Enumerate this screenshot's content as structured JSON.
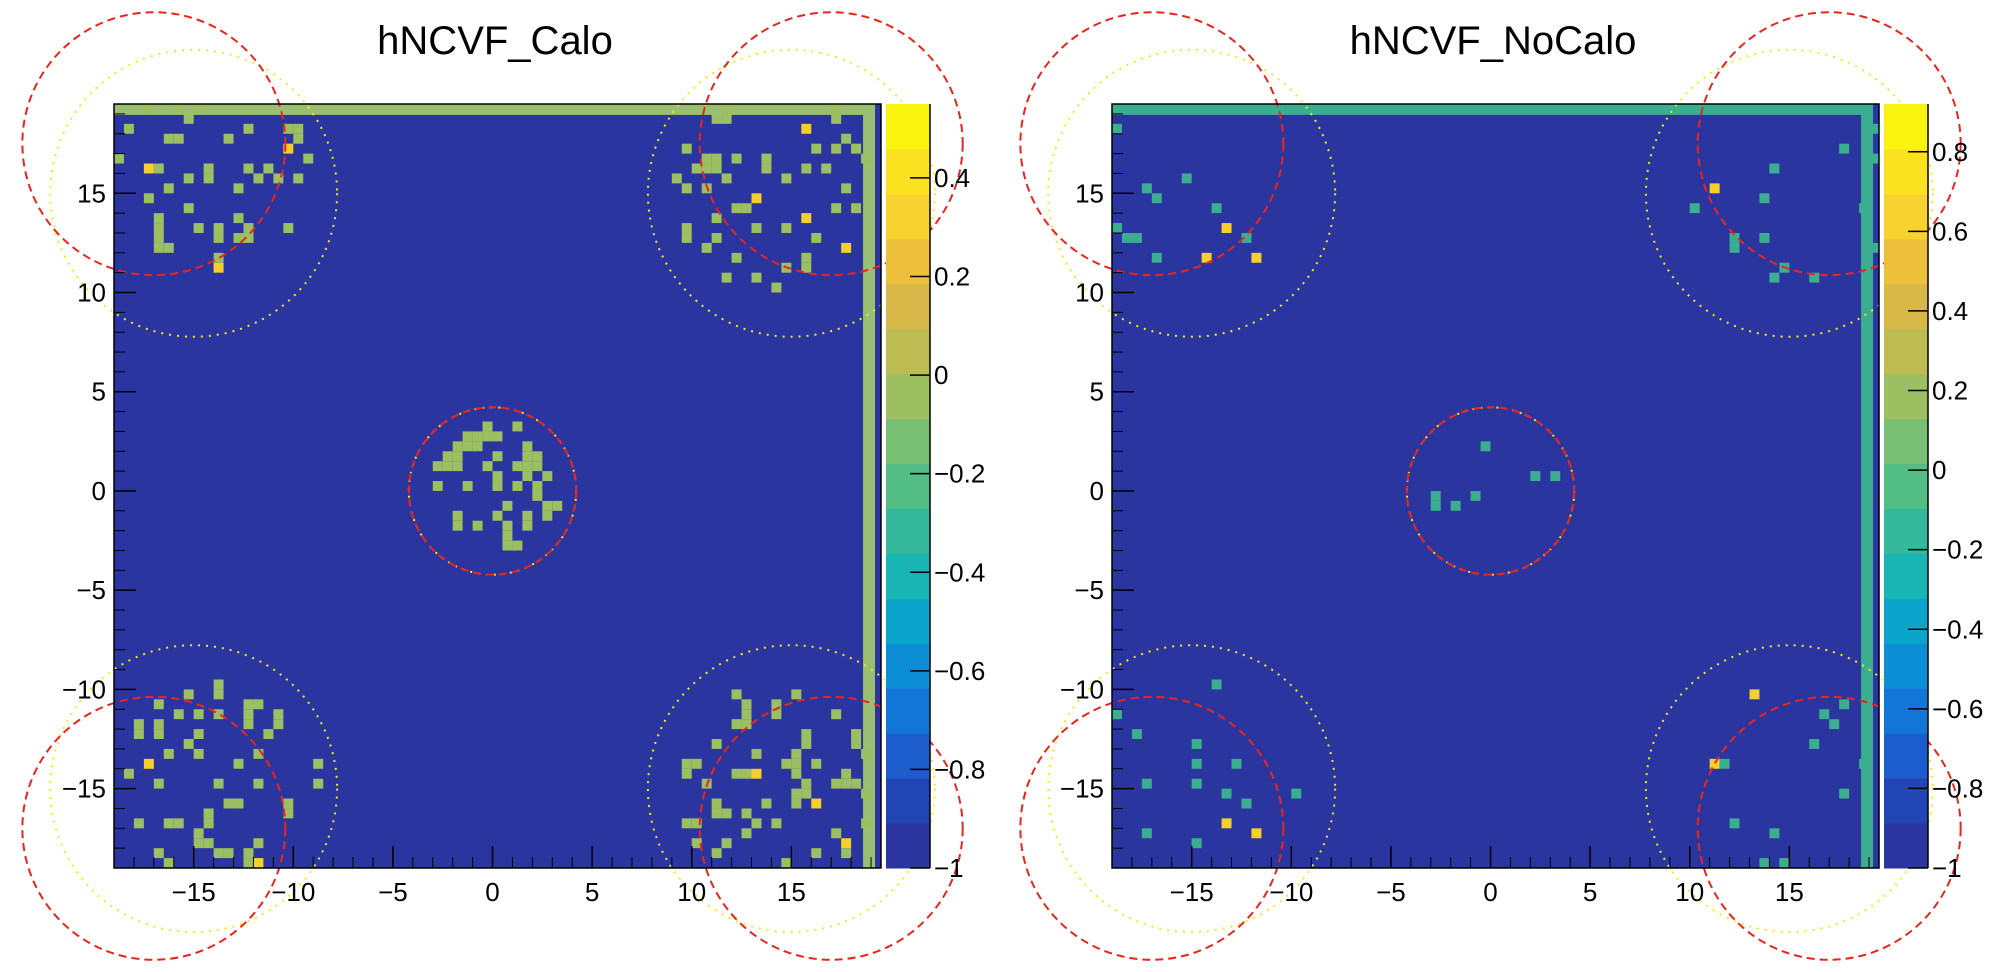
{
  "colors": {
    "background": "#2c3da6",
    "bin_low": "#3aae8f",
    "bin_mid": "#8cc06f",
    "bin_high": "#f6d02a",
    "top_row_calo": "#9bbf72",
    "top_row_nocalo": "#3aae8f",
    "dashed_red": "#e8251c",
    "dotted_yellow": "#f4e81c"
  },
  "palette": [
    "#2b35a0",
    "#2245b6",
    "#1d5ccc",
    "#1276d8",
    "#0b8ed6",
    "#0ba5cc",
    "#19b5b5",
    "#34b99d",
    "#52bd85",
    "#78bf73",
    "#9cbf61",
    "#bdbc52",
    "#d7b849",
    "#edc03c",
    "#f8d22e",
    "#fbe221",
    "#f9f40f"
  ],
  "chart_data": [
    {
      "type": "heatmap",
      "title": "hNCVF_Calo",
      "xlabel": "",
      "ylabel": "",
      "xlim": [
        -19,
        19.5
      ],
      "ylim": [
        -19,
        19.5
      ],
      "xticks": [
        -15,
        -10,
        -5,
        0,
        5,
        10,
        15
      ],
      "xtick_labels": [
        "−15",
        "−10",
        "−5",
        "0",
        "5",
        "10",
        "15"
      ],
      "yticks": [
        15,
        10,
        5,
        0,
        -5,
        -10,
        -15
      ],
      "ytick_labels": [
        "15",
        "10",
        "5",
        "0",
        "−5",
        "−10",
        "−15"
      ],
      "zlim": [
        -1,
        0.55
      ],
      "zticks": [
        0.4,
        0.2,
        0,
        -0.2,
        -0.4,
        -0.6,
        -0.8,
        -1
      ],
      "ztick_labels": [
        "0.4",
        "0.2",
        "0",
        "−0.2",
        "−0.4",
        "−0.6",
        "−0.8",
        "−1"
      ],
      "background_value": -1,
      "typical_bin_value": 0,
      "hot_bin_value": 0.55,
      "clusters": [
        {
          "center": [
            -14,
            15.5
          ],
          "count": 48,
          "hot": 3
        },
        {
          "center": [
            14,
            15
          ],
          "count": 55,
          "hot": 4
        },
        {
          "center": [
            0,
            0
          ],
          "count": 45,
          "hot": 0
        },
        {
          "center": [
            -14,
            -14.5
          ],
          "count": 52,
          "hot": 2
        },
        {
          "center": [
            14,
            -15
          ],
          "count": 58,
          "hot": 3
        }
      ],
      "dashed_circles": [
        {
          "center": [
            -17,
            17.5
          ],
          "radius": 6.6
        },
        {
          "center": [
            17,
            17.5
          ],
          "radius": 6.6
        },
        {
          "center": [
            -17,
            -17
          ],
          "radius": 6.6
        },
        {
          "center": [
            17,
            -17
          ],
          "radius": 6.6
        },
        {
          "center": [
            0,
            0
          ],
          "radius": 4.2
        }
      ],
      "dotted_circles": [
        {
          "center": [
            -15,
            15
          ],
          "radius": 7.2
        },
        {
          "center": [
            15,
            15
          ],
          "radius": 7.2
        },
        {
          "center": [
            -15,
            -15
          ],
          "radius": 7.2
        },
        {
          "center": [
            15,
            -15
          ],
          "radius": 7.2
        },
        {
          "center": [
            0,
            0
          ],
          "radius": 4.2
        }
      ]
    },
    {
      "type": "heatmap",
      "title": "hNCVF_NoCalo",
      "xlabel": "",
      "ylabel": "",
      "xlim": [
        -19,
        19.5
      ],
      "ylim": [
        -19,
        19.5
      ],
      "xticks": [
        -15,
        -10,
        -5,
        0,
        5,
        10,
        15
      ],
      "xtick_labels": [
        "−15",
        "−10",
        "−5",
        "0",
        "5",
        "10",
        "15"
      ],
      "yticks": [
        15,
        10,
        5,
        0,
        -5,
        -10,
        -15
      ],
      "ytick_labels": [
        "15",
        "10",
        "5",
        "0",
        "−5",
        "−10",
        "−15"
      ],
      "zlim": [
        -1,
        0.92
      ],
      "zticks": [
        0.8,
        0.6,
        0.4,
        0.2,
        0,
        -0.2,
        -0.4,
        -0.6,
        -0.8,
        -1
      ],
      "ztick_labels": [
        "0.8",
        "0.6",
        "0.4",
        "0.2",
        "0",
        "−0.2",
        "−0.4",
        "−0.6",
        "−0.8",
        "−1"
      ],
      "background_value": -1,
      "typical_bin_value": 0,
      "hot_bin_value": 0.7,
      "clusters": [
        {
          "center": [
            -15,
            15.5
          ],
          "count": 18,
          "hot": 3
        },
        {
          "center": [
            15,
            15
          ],
          "count": 16,
          "hot": 2
        },
        {
          "center": [
            0,
            0
          ],
          "count": 7,
          "hot": 0
        },
        {
          "center": [
            -15,
            -14.5
          ],
          "count": 17,
          "hot": 3
        },
        {
          "center": [
            15,
            -15
          ],
          "count": 16,
          "hot": 2
        }
      ],
      "dashed_circles": [
        {
          "center": [
            -17,
            17.5
          ],
          "radius": 6.6
        },
        {
          "center": [
            17,
            17.5
          ],
          "radius": 6.6
        },
        {
          "center": [
            -17,
            -17
          ],
          "radius": 6.6
        },
        {
          "center": [
            17,
            -17
          ],
          "radius": 6.6
        },
        {
          "center": [
            0,
            0
          ],
          "radius": 4.2
        }
      ],
      "dotted_circles": [
        {
          "center": [
            -15,
            15
          ],
          "radius": 7.2
        },
        {
          "center": [
            15,
            15
          ],
          "radius": 7.2
        },
        {
          "center": [
            -15,
            -15
          ],
          "radius": 7.2
        },
        {
          "center": [
            15,
            -15
          ],
          "radius": 7.2
        },
        {
          "center": [
            0,
            0
          ],
          "radius": 4.2
        }
      ]
    }
  ]
}
